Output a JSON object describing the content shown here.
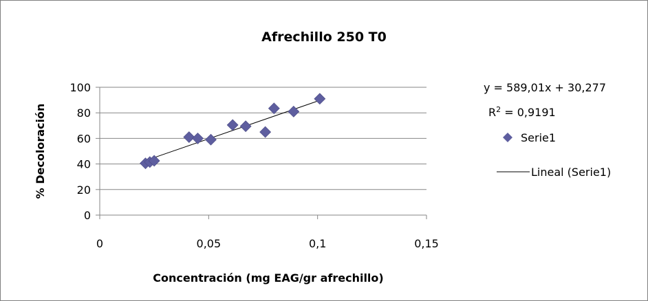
{
  "chart_data": {
    "type": "scatter",
    "title": "Afrechillo 250 T0",
    "xlabel": "Concentración (mg EAG/gr afrechillo)",
    "ylabel": "% Decoloración",
    "xlim": [
      0,
      0.15
    ],
    "ylim": [
      0,
      100
    ],
    "x_ticks": [
      "0",
      "0,05",
      "0,1",
      "0,15"
    ],
    "y_ticks": [
      "0",
      "20",
      "40",
      "60",
      "80",
      "100"
    ],
    "x_tick_values": [
      0,
      0.05,
      0.1,
      0.15
    ],
    "y_tick_values": [
      0,
      20,
      40,
      60,
      80,
      100
    ],
    "grid": "horizontal",
    "legend_position": "right",
    "series": [
      {
        "name": "Serie1",
        "marker": "diamond",
        "color": "#5e5e9f",
        "points": [
          {
            "x": 0.021,
            "y": 40.5
          },
          {
            "x": 0.023,
            "y": 41.5
          },
          {
            "x": 0.025,
            "y": 42.5
          },
          {
            "x": 0.041,
            "y": 61.0
          },
          {
            "x": 0.045,
            "y": 60.0
          },
          {
            "x": 0.051,
            "y": 59.0
          },
          {
            "x": 0.061,
            "y": 70.5
          },
          {
            "x": 0.067,
            "y": 69.5
          },
          {
            "x": 0.076,
            "y": 65.0
          },
          {
            "x": 0.08,
            "y": 83.5
          },
          {
            "x": 0.089,
            "y": 81.0
          },
          {
            "x": 0.101,
            "y": 91.0
          }
        ]
      }
    ],
    "trendline": {
      "name": "Lineal (Serie1)",
      "slope": 589.01,
      "intercept": 30.277,
      "x_range": [
        0.021,
        0.101
      ],
      "equation": "y = 589,01x + 30,277",
      "r2_label": "R",
      "r2_exp": "2",
      "r2_value": " = 0,9191",
      "color": "#000000"
    },
    "axis_color": "#868686",
    "grid_color": "#868686"
  }
}
